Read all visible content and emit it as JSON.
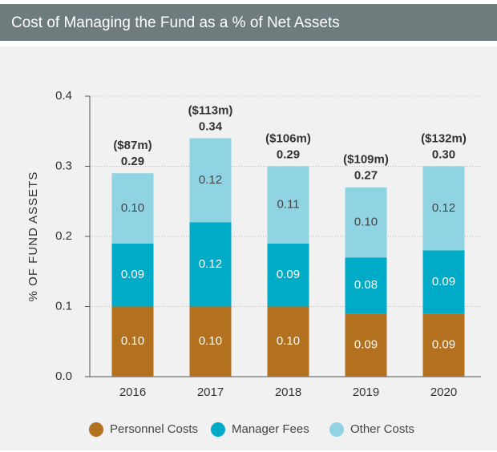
{
  "chart_data": {
    "type": "bar",
    "stacked": true,
    "title": "Cost of Managing the Fund as a % of Net Assets",
    "y_label": "% OF FUND ASSETS",
    "categories": [
      "2016",
      "2017",
      "2018",
      "2019",
      "2020"
    ],
    "series": [
      {
        "name": "Personnel Costs",
        "color": "#b3701f",
        "values": [
          0.1,
          0.1,
          0.1,
          0.09,
          0.09
        ],
        "value_labels": [
          "0.10",
          "0.10",
          "0.10",
          "0.09",
          "0.09"
        ],
        "label_color": "#ffffff"
      },
      {
        "name": "Manager Fees",
        "color": "#00abc7",
        "values": [
          0.09,
          0.12,
          0.09,
          0.08,
          0.09
        ],
        "value_labels": [
          "0.09",
          "0.12",
          "0.09",
          "0.08",
          "0.09"
        ],
        "label_color": "#ffffff"
      },
      {
        "name": "Other Costs",
        "color": "#90d4e4",
        "values": [
          0.1,
          0.12,
          0.11,
          0.1,
          0.12
        ],
        "value_labels": [
          "0.10",
          "0.12",
          "0.11",
          "0.10",
          "0.12"
        ],
        "label_color": "#444444"
      }
    ],
    "totals": [
      0.29,
      0.34,
      0.29,
      0.27,
      0.3
    ],
    "total_labels": [
      "0.29",
      "0.34",
      "0.29",
      "0.27",
      "0.30"
    ],
    "amounts": [
      "($87m)",
      "($113m)",
      "($106m)",
      "($109m)",
      "($132m)"
    ],
    "ylim": [
      0,
      0.4
    ],
    "yticks": [
      {
        "value": 0,
        "label": "0.0"
      },
      0.1,
      0.2,
      0.3,
      0.4
    ],
    "grid": true
  }
}
